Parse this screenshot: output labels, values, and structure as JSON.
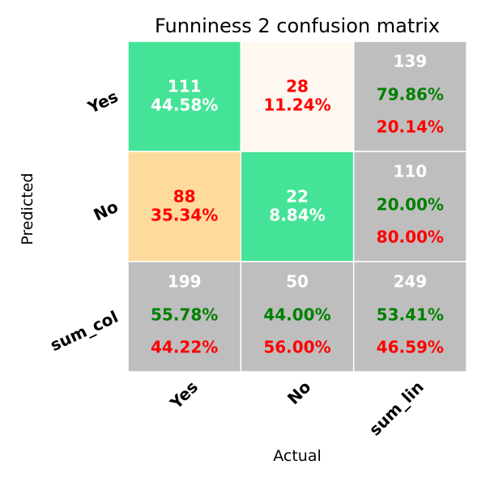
{
  "chart_data": {
    "type": "heatmap",
    "title": "Funniness 2 confusion matrix",
    "xlabel": "Actual",
    "ylabel": "Predicted",
    "x_tick_labels": [
      "Yes",
      "No",
      "sum_lin"
    ],
    "y_tick_labels": [
      "Yes",
      "No",
      "sum_col"
    ],
    "colors": {
      "correct": "#45e397",
      "low": "#fff8f0",
      "high_error": "#fedb9c",
      "summary": "#bebebe",
      "text_white": "#ffffff",
      "text_red": "#ff0000",
      "text_green": "#008000",
      "grid": "#ffffff"
    },
    "cells": [
      [
        {
          "kind": "main",
          "count": "111",
          "percent": "44.58%",
          "fill": "correct",
          "text": "text_white"
        },
        {
          "kind": "main",
          "count": "28",
          "percent": "11.24%",
          "fill": "low",
          "text": "text_red"
        },
        {
          "kind": "summary",
          "count": "139",
          "correct": "79.86%",
          "error": "20.14%"
        }
      ],
      [
        {
          "kind": "main",
          "count": "88",
          "percent": "35.34%",
          "fill": "high_error",
          "text": "text_red"
        },
        {
          "kind": "main",
          "count": "22",
          "percent": "8.84%",
          "fill": "correct",
          "text": "text_white"
        },
        {
          "kind": "summary",
          "count": "110",
          "correct": "20.00%",
          "error": "80.00%"
        }
      ],
      [
        {
          "kind": "summary",
          "count": "199",
          "correct": "55.78%",
          "error": "44.22%"
        },
        {
          "kind": "summary",
          "count": "50",
          "correct": "44.00%",
          "error": "56.00%"
        },
        {
          "kind": "summary",
          "count": "249",
          "correct": "53.41%",
          "error": "46.59%"
        }
      ]
    ]
  }
}
